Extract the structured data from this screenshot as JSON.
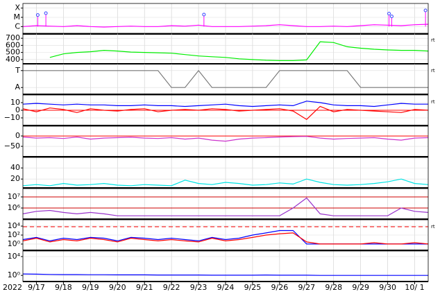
{
  "x_axis": {
    "year": "2022",
    "x": [
      -0.5,
      0,
      0.5,
      1,
      1.5,
      2,
      2.5,
      3,
      3.5,
      4,
      4.5,
      5,
      5.5,
      6,
      6.5,
      7,
      7.5,
      8,
      8.5,
      9,
      9.5,
      10,
      10.5,
      11,
      11.5,
      12,
      12.5,
      13,
      13.5,
      14,
      14.5
    ],
    "xlim": [
      -0.5,
      14.5
    ],
    "xticks": [
      {
        "value": 0,
        "label": "9/17"
      },
      {
        "value": 1,
        "label": "9/18"
      },
      {
        "value": 2,
        "label": "9/19"
      },
      {
        "value": 3,
        "label": "9/20"
      },
      {
        "value": 4,
        "label": "9/21"
      },
      {
        "value": 5,
        "label": "9/22"
      },
      {
        "value": 6,
        "label": "9/23"
      },
      {
        "value": 7,
        "label": "9/24"
      },
      {
        "value": 8,
        "label": "9/25"
      },
      {
        "value": 9,
        "label": "9/26"
      },
      {
        "value": 10,
        "label": "9/27"
      },
      {
        "value": 11,
        "label": "9/28"
      },
      {
        "value": 12,
        "label": "9/29"
      },
      {
        "value": 13,
        "label": "9/30"
      },
      {
        "value": 14,
        "label": "10/ 1"
      }
    ]
  },
  "chart_data": [
    {
      "type": "line",
      "ylim": [
        0.2,
        3.5
      ],
      "yticks": [
        {
          "value": 3,
          "label": "X"
        },
        {
          "value": 2,
          "label": "M"
        },
        {
          "value": 1,
          "label": "C"
        }
      ],
      "series": [
        {
          "color": "#ff00ff",
          "values": [
            1.0,
            1.1,
            1.05,
            1.0,
            1.1,
            1.0,
            0.95,
            1.0,
            1.05,
            1.0,
            1.0,
            1.1,
            1.05,
            1.15,
            1.0,
            1.0,
            1.0,
            1.05,
            1.1,
            1.2,
            1.1,
            1.0,
            1.0,
            1.05,
            1.0,
            1.1,
            1.2,
            1.15,
            1.1,
            1.2,
            1.25
          ]
        }
      ],
      "flares": [
        {
          "x": 0.05,
          "class": 2.25
        },
        {
          "x": 0.35,
          "class": 2.45
        },
        {
          "x": 6.2,
          "class": 2.3
        },
        {
          "x": 13.05,
          "class": 2.4
        },
        {
          "x": 13.15,
          "class": 2.1
        },
        {
          "x": 14.4,
          "class": 2.75
        }
      ],
      "flare_color": "#3344ff"
    },
    {
      "type": "line",
      "ylim": [
        340,
        770
      ],
      "yticks": [
        400,
        500,
        600,
        700
      ],
      "side_label": "rt",
      "series": [
        {
          "color": "#00ee00",
          "values": [
            null,
            null,
            430,
            480,
            500,
            510,
            530,
            520,
            505,
            500,
            495,
            490,
            470,
            450,
            440,
            430,
            410,
            400,
            390,
            385,
            385,
            395,
            650,
            640,
            580,
            560,
            545,
            535,
            530,
            530,
            520
          ]
        }
      ]
    },
    {
      "type": "line",
      "ylim": [
        -0.4,
        1.4
      ],
      "yticks": [
        {
          "value": 1,
          "label": "T"
        },
        {
          "value": 0,
          "label": "A"
        }
      ],
      "side_label": "rt",
      "series": [
        {
          "color": "#777777",
          "values": [
            1,
            1,
            1,
            1,
            1,
            1,
            1,
            1,
            1,
            1,
            1,
            0,
            0,
            1,
            0,
            0,
            0,
            0,
            0,
            1,
            1,
            1,
            1,
            1,
            1,
            0,
            0,
            0,
            0,
            0,
            0
          ]
        }
      ]
    },
    {
      "type": "line",
      "ylim": [
        -20,
        20
      ],
      "yticks": [
        10,
        0,
        {
          "value": -10,
          "label": "−10"
        }
      ],
      "side_label": "rt",
      "hlines": [
        {
          "value": 0,
          "color": "#ff0000"
        }
      ],
      "series": [
        {
          "color": "#0000ff",
          "values": [
            8,
            9,
            8,
            7,
            8,
            7,
            7,
            6,
            6,
            7,
            6,
            6,
            5,
            6,
            7,
            8,
            6,
            5,
            6,
            7,
            6,
            12,
            10,
            7,
            6,
            6,
            5,
            7,
            9,
            8,
            8
          ]
        },
        {
          "color": "#ff0000",
          "values": [
            2,
            -2,
            3,
            1,
            -3,
            2,
            0,
            -1,
            1,
            2,
            -2,
            0,
            1,
            0,
            2,
            1,
            -1,
            0,
            1,
            2,
            -1,
            -12,
            5,
            -2,
            1,
            0,
            -1,
            -2,
            -3,
            1,
            0
          ]
        }
      ]
    },
    {
      "type": "line",
      "ylim": [
        -100,
        47
      ],
      "yticks": [
        0,
        {
          "value": -50,
          "label": "−50"
        }
      ],
      "hlines": [
        {
          "value": 0,
          "color": "#ff0000"
        }
      ],
      "series": [
        {
          "color": "#cc33cc",
          "values": [
            -5,
            -10,
            -8,
            -12,
            -5,
            -15,
            -10,
            -8,
            -6,
            -10,
            -12,
            -8,
            -15,
            -10,
            -20,
            -25,
            -15,
            -10,
            -8,
            -5,
            -3,
            -2,
            -10,
            -15,
            -12,
            -10,
            -8,
            -15,
            -20,
            -10,
            -8
          ]
        }
      ]
    },
    {
      "type": "line",
      "ylim": [
        4,
        59
      ],
      "yticks": [
        40,
        20
      ],
      "series": [
        {
          "color": "#00e5e5",
          "values": [
            8,
            10,
            8,
            12,
            9,
            10,
            12,
            9,
            8,
            10,
            9,
            8,
            18,
            12,
            10,
            14,
            12,
            9,
            10,
            13,
            11,
            20,
            14,
            10,
            9,
            10,
            12,
            15,
            20,
            12,
            10
          ]
        }
      ]
    },
    {
      "type": "line",
      "log": true,
      "ylim": [
        100000,
        56000000
      ],
      "yticks": [
        {
          "value": 10000000,
          "label": "10⁷"
        },
        {
          "value": 1000000,
          "label": "10⁶"
        }
      ],
      "hlines": [
        {
          "value": 10000000,
          "color": "#cc0000"
        },
        {
          "value": 1000000,
          "color": "#cc0000"
        }
      ],
      "series": [
        {
          "color": "#9933cc",
          "values": [
            300000,
            500000,
            600000,
            400000,
            300000,
            400000,
            300000,
            200000,
            200000,
            200000,
            200000,
            200000,
            200000,
            200000,
            200000,
            200000,
            200000,
            200000,
            200000,
            200000,
            1000000,
            8000000,
            300000,
            200000,
            200000,
            200000,
            200000,
            200000,
            1000000,
            500000,
            400000
          ]
        }
      ]
    },
    {
      "type": "line",
      "log": true,
      "ylim": [
        0.04,
        250000
      ],
      "yticks": [
        {
          "value": 10000,
          "label": "10⁴"
        },
        {
          "value": 100,
          "label": "10²"
        },
        {
          "value": 1,
          "label": "10⁰"
        }
      ],
      "side_label": "rt",
      "hlines": [
        {
          "value": 7000,
          "color": "#ff0000",
          "dashed": true
        }
      ],
      "series": [
        {
          "color": "#0000ff",
          "values": [
            10,
            30,
            5,
            20,
            10,
            30,
            20,
            5,
            30,
            20,
            10,
            20,
            10,
            5,
            30,
            10,
            20,
            100,
            300,
            1000,
            1000,
            1,
            1,
            1,
            1,
            1,
            1,
            1,
            1,
            1,
            1
          ]
        },
        {
          "color": "#ff0000",
          "values": [
            5,
            20,
            3,
            10,
            5,
            20,
            10,
            3,
            20,
            10,
            5,
            10,
            5,
            3,
            20,
            5,
            10,
            30,
            100,
            200,
            300,
            3,
            1,
            1,
            1,
            1,
            2,
            1,
            1,
            2,
            1
          ]
        }
      ]
    },
    {
      "type": "line",
      "log": true,
      "ylim": [
        0.05,
        150000
      ],
      "yticks": [
        {
          "value": 10000,
          "label": "10⁴"
        },
        {
          "value": 1,
          "label": "10⁰"
        }
      ],
      "series": [
        {
          "color": "#0000ff",
          "values": [
            2,
            1.8,
            1.6,
            1.5,
            1.5,
            1.4,
            1.4,
            1.3,
            1.3,
            1.3,
            1.2,
            1.2,
            1.2,
            1.2,
            1.1,
            1.1,
            1.1,
            1.1,
            1.2,
            1.1,
            1.1,
            1.1,
            1.0,
            1.0,
            1.0,
            1.0,
            1.0,
            1.0,
            1.0,
            1.0,
            1.0
          ]
        }
      ]
    }
  ]
}
